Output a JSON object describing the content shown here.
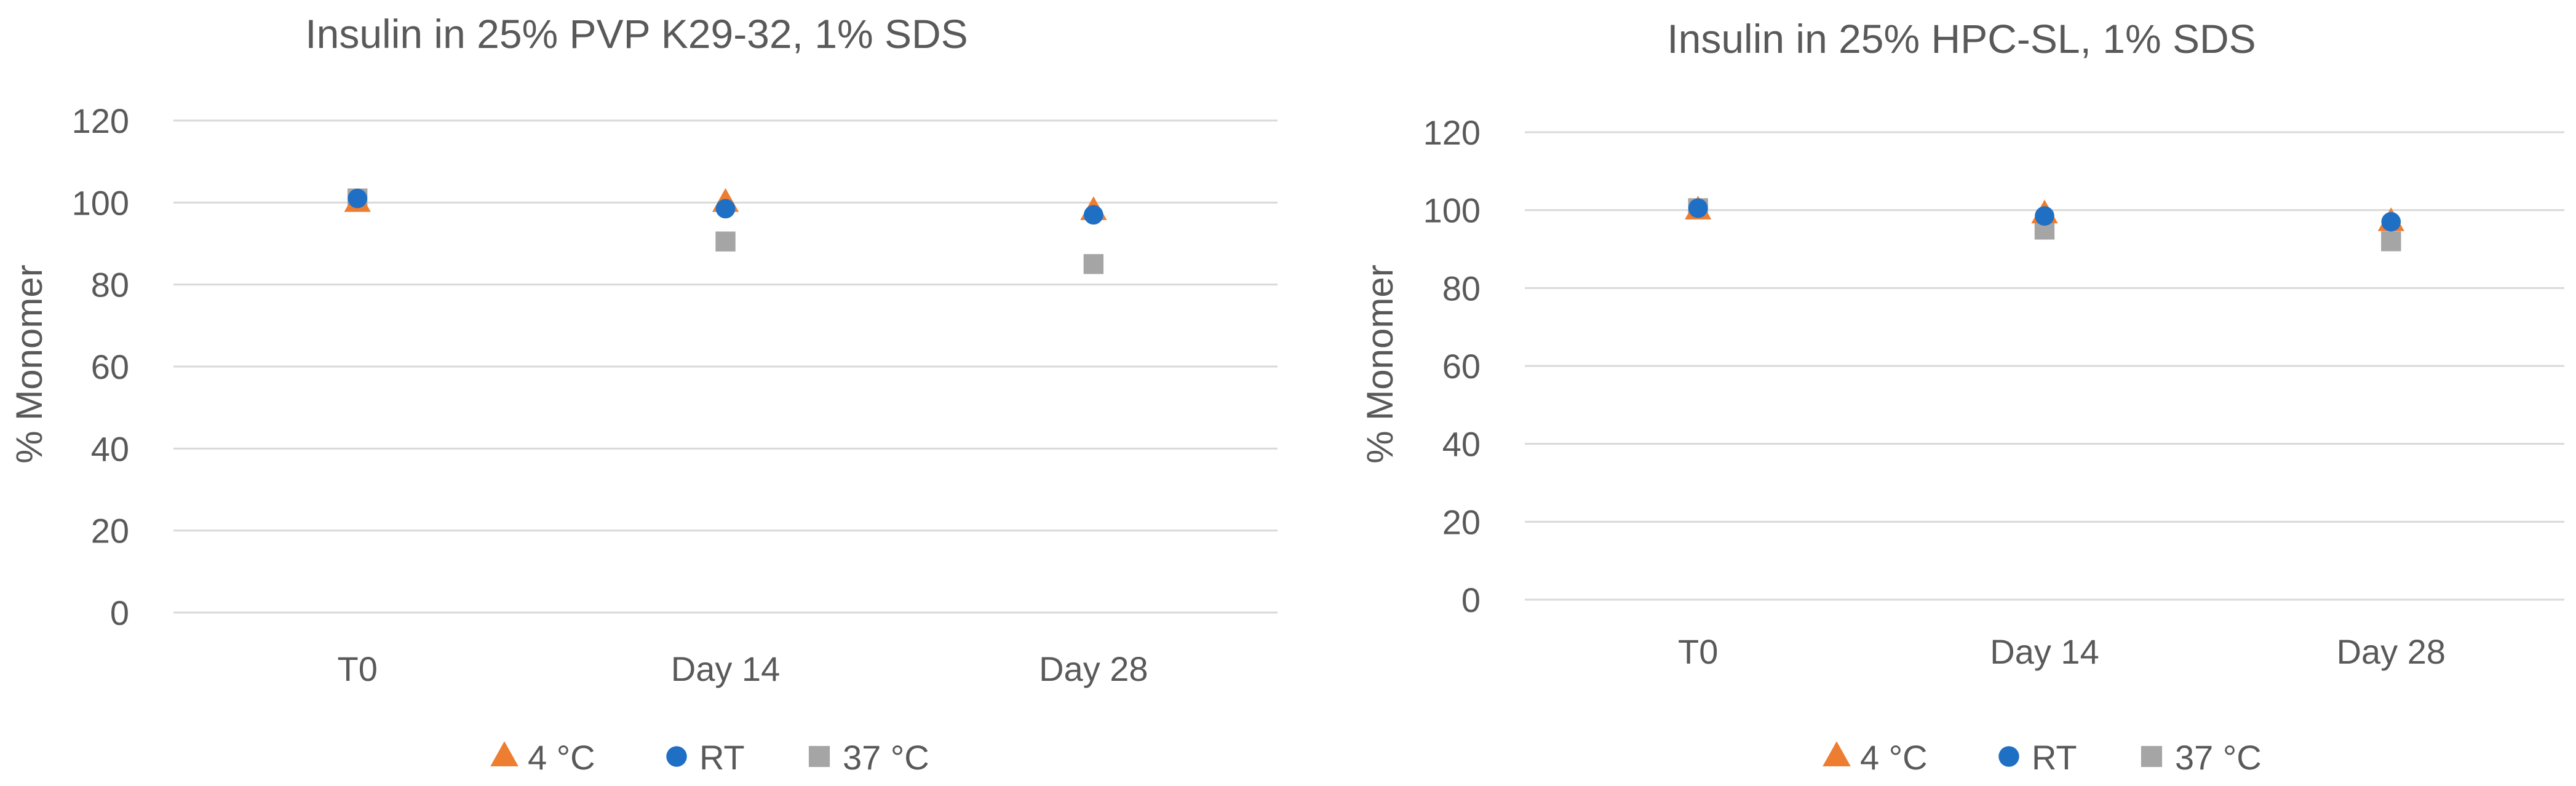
{
  "colors": {
    "s4c": "#ed7d31",
    "rt": "#1f6fc5",
    "s37c": "#a5a5a5",
    "text": "#595959",
    "grid": "#d9d9d9"
  },
  "chart_data": [
    {
      "type": "scatter",
      "title": "Insulin in 25% PVP K29-32, 1% SDS",
      "ylabel": "% Monomer",
      "xlabel": "",
      "categories": [
        "T0",
        "Day 14",
        "Day 28"
      ],
      "ylim": [
        0,
        120
      ],
      "yticks": [
        0,
        20,
        40,
        60,
        80,
        100,
        120
      ],
      "grid": true,
      "legend_position": "bottom",
      "series": [
        {
          "name": "4 °C",
          "marker": "triangle",
          "values": [
            100,
            100,
            98
          ]
        },
        {
          "name": "RT",
          "marker": "circle",
          "values": [
            101,
            98.5,
            97
          ]
        },
        {
          "name": "37 °C",
          "marker": "square",
          "values": [
            101,
            90.5,
            85
          ]
        }
      ]
    },
    {
      "type": "scatter",
      "title": "Insulin in 25% HPC-SL, 1% SDS",
      "ylabel": "% Monomer",
      "xlabel": "",
      "categories": [
        "T0",
        "Day 14",
        "Day 28"
      ],
      "ylim": [
        0,
        120
      ],
      "yticks": [
        0,
        20,
        40,
        60,
        80,
        100,
        120
      ],
      "grid": true,
      "legend_position": "bottom",
      "series": [
        {
          "name": "4 °C",
          "marker": "triangle",
          "values": [
            100,
            99,
            97
          ]
        },
        {
          "name": "RT",
          "marker": "circle",
          "values": [
            100.5,
            98.5,
            97
          ]
        },
        {
          "name": "37 °C",
          "marker": "square",
          "values": [
            100.5,
            95,
            92
          ]
        }
      ]
    }
  ]
}
